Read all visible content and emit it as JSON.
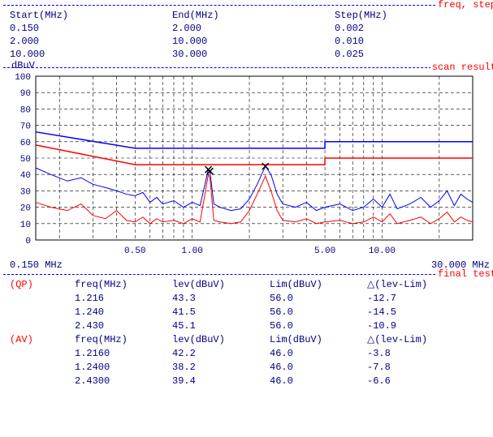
{
  "font": {
    "family": "Courier New",
    "size_pt": 10
  },
  "colors": {
    "text": "#000080",
    "accent": "#ff0000",
    "dash": "#0000ff",
    "grid": "#000000",
    "border": "#000000",
    "series1": "#0000ff",
    "series2": "#ff0000",
    "marker": "#000000",
    "background": "#ffffff"
  },
  "sections": {
    "freq_step": {
      "label": "freq, step",
      "headers": [
        "Start(MHz)",
        "End(MHz)",
        "Step(MHz)"
      ],
      "rows": [
        [
          "0.150",
          "2.000",
          "0.002"
        ],
        [
          "2.000",
          "10.000",
          "0.010"
        ],
        [
          "10.000",
          "30.000",
          "0.025"
        ]
      ]
    },
    "scan_result": {
      "label": "scan result"
    },
    "final_test": {
      "label": "final test"
    }
  },
  "chart": {
    "type": "line",
    "ylabel": "dBuV",
    "ylim": [
      0,
      100
    ],
    "ytick_step": 10,
    "yticks": [
      0,
      10,
      20,
      30,
      40,
      50,
      60,
      70,
      80,
      90,
      100
    ],
    "xscale": "log",
    "xlim": [
      0.15,
      30.0
    ],
    "xticks": [
      0.5,
      1.0,
      5.0,
      10.0
    ],
    "xtick_labels": [
      "0.50",
      "1.00",
      "5.00",
      "10.00"
    ],
    "range_labels": {
      "left": "0.150 MHz",
      "right": "30.000 MHz"
    },
    "grid": {
      "style": "dashed",
      "color": "#000000"
    },
    "limit1": {
      "color": "#0000ff",
      "width": 1.5,
      "points": [
        [
          0.15,
          66
        ],
        [
          0.5,
          56
        ],
        [
          5.0,
          56
        ],
        [
          5.0,
          60
        ],
        [
          30.0,
          60
        ]
      ]
    },
    "limit2": {
      "color": "#ff0000",
      "width": 1.5,
      "points": [
        [
          0.15,
          58
        ],
        [
          0.5,
          46
        ],
        [
          5.0,
          46
        ],
        [
          5.0,
          50
        ],
        [
          30.0,
          50
        ]
      ]
    },
    "series1": {
      "color": "#0000ff",
      "width": 1,
      "points": [
        [
          0.15,
          44
        ],
        [
          0.18,
          40
        ],
        [
          0.22,
          36
        ],
        [
          0.26,
          38
        ],
        [
          0.3,
          34
        ],
        [
          0.35,
          32
        ],
        [
          0.4,
          30
        ],
        [
          0.45,
          28
        ],
        [
          0.5,
          27
        ],
        [
          0.55,
          29
        ],
        [
          0.6,
          23
        ],
        [
          0.65,
          26
        ],
        [
          0.7,
          22
        ],
        [
          0.8,
          24
        ],
        [
          0.9,
          20
        ],
        [
          1.0,
          23
        ],
        [
          1.1,
          21
        ],
        [
          1.216,
          43
        ],
        [
          1.24,
          42
        ],
        [
          1.3,
          22
        ],
        [
          1.4,
          20
        ],
        [
          1.6,
          18
        ],
        [
          1.8,
          19
        ],
        [
          2.0,
          25
        ],
        [
          2.2,
          34
        ],
        [
          2.43,
          45
        ],
        [
          2.6,
          40
        ],
        [
          2.8,
          28
        ],
        [
          3.0,
          22
        ],
        [
          3.5,
          20
        ],
        [
          4.0,
          23
        ],
        [
          4.5,
          18
        ],
        [
          5.0,
          20
        ],
        [
          6.0,
          22
        ],
        [
          7.0,
          18
        ],
        [
          8.0,
          20
        ],
        [
          9.0,
          25
        ],
        [
          10.0,
          20
        ],
        [
          11.0,
          28
        ],
        [
          12.0,
          19
        ],
        [
          14.0,
          22
        ],
        [
          16.0,
          26
        ],
        [
          18.0,
          20
        ],
        [
          20.0,
          24
        ],
        [
          22.0,
          30
        ],
        [
          24.0,
          21
        ],
        [
          26.0,
          28
        ],
        [
          28.0,
          25
        ],
        [
          30.0,
          23
        ]
      ]
    },
    "series2": {
      "color": "#ff0000",
      "width": 1,
      "points": [
        [
          0.15,
          23
        ],
        [
          0.18,
          20
        ],
        [
          0.22,
          18
        ],
        [
          0.26,
          22
        ],
        [
          0.3,
          15
        ],
        [
          0.35,
          13
        ],
        [
          0.4,
          18
        ],
        [
          0.45,
          12
        ],
        [
          0.5,
          11
        ],
        [
          0.55,
          14
        ],
        [
          0.6,
          10
        ],
        [
          0.65,
          13
        ],
        [
          0.7,
          11
        ],
        [
          0.8,
          12
        ],
        [
          0.9,
          10
        ],
        [
          1.0,
          13
        ],
        [
          1.1,
          11
        ],
        [
          1.216,
          40
        ],
        [
          1.24,
          38
        ],
        [
          1.3,
          12
        ],
        [
          1.4,
          11
        ],
        [
          1.6,
          10
        ],
        [
          1.8,
          11
        ],
        [
          2.0,
          18
        ],
        [
          2.2,
          28
        ],
        [
          2.43,
          39
        ],
        [
          2.6,
          30
        ],
        [
          2.8,
          18
        ],
        [
          3.0,
          12
        ],
        [
          3.5,
          11
        ],
        [
          4.0,
          13
        ],
        [
          4.5,
          10
        ],
        [
          5.0,
          11
        ],
        [
          6.0,
          12
        ],
        [
          7.0,
          10
        ],
        [
          8.0,
          11
        ],
        [
          9.0,
          14
        ],
        [
          10.0,
          11
        ],
        [
          11.0,
          16
        ],
        [
          12.0,
          10
        ],
        [
          14.0,
          12
        ],
        [
          16.0,
          14
        ],
        [
          18.0,
          10
        ],
        [
          20.0,
          13
        ],
        [
          22.0,
          17
        ],
        [
          24.0,
          11
        ],
        [
          26.0,
          14
        ],
        [
          28.0,
          12
        ],
        [
          30.0,
          11
        ]
      ]
    },
    "markers": [
      {
        "x": 1.216,
        "y": 43,
        "symbol": "x",
        "color": "#000000"
      },
      {
        "x": 1.24,
        "y": 42,
        "symbol": "x",
        "color": "#000000"
      },
      {
        "x": 2.43,
        "y": 45,
        "symbol": "x",
        "color": "#000000"
      }
    ]
  },
  "final": {
    "qp": {
      "tag": "(QP)",
      "headers": [
        "freq(MHz)",
        "lev(dBuV)",
        "Lim(dBuV)",
        "△(lev-Lim)"
      ],
      "rows": [
        [
          "1.216",
          "43.3",
          "56.0",
          "-12.7"
        ],
        [
          "1.240",
          "41.5",
          "56.0",
          "-14.5"
        ],
        [
          "2.430",
          "45.1",
          "56.0",
          "-10.9"
        ]
      ]
    },
    "av": {
      "tag": "(AV)",
      "headers": [
        "freq(MHz)",
        "lev(dBuV)",
        "Lim(dBuV)",
        "△(lev-Lim)"
      ],
      "rows": [
        [
          "1.2160",
          "42.2",
          "46.0",
          "-3.8"
        ],
        [
          "1.2400",
          "38.2",
          "46.0",
          "-7.8"
        ],
        [
          "2.4300",
          "39.4",
          "46.0",
          "-6.6"
        ]
      ]
    }
  }
}
